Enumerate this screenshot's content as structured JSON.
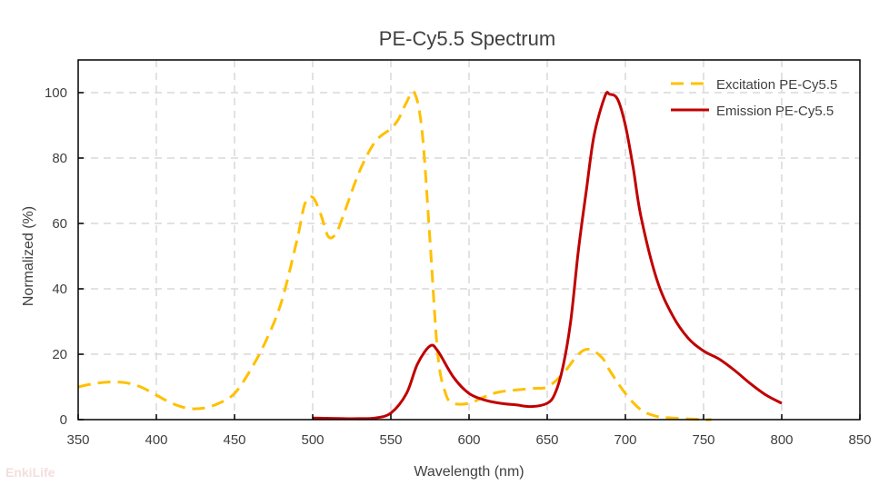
{
  "chart_data": {
    "type": "line",
    "title": "PE-Cy5.5  Spectrum",
    "xlabel": "Wavelength (nm)",
    "ylabel": "Normalized (%)",
    "xlim": [
      350,
      850
    ],
    "ylim": [
      0,
      110
    ],
    "xticks": [
      350,
      400,
      450,
      500,
      550,
      600,
      650,
      700,
      750,
      800,
      850
    ],
    "yticks": [
      0,
      20,
      40,
      60,
      80,
      100
    ],
    "grid": true,
    "legend_position": "top-right",
    "series": [
      {
        "name": "Excitation PE-Cy5.5",
        "color": "#FFC000",
        "style": "dashed",
        "x": [
          350,
          360,
          370,
          380,
          390,
          400,
          410,
          420,
          430,
          440,
          450,
          460,
          470,
          480,
          490,
          495,
          500,
          505,
          510,
          515,
          520,
          530,
          540,
          550,
          555,
          560,
          565,
          570,
          575,
          580,
          585,
          590,
          600,
          610,
          620,
          640,
          650,
          660,
          670,
          677,
          685,
          690,
          700,
          710,
          720,
          730,
          750,
          755
        ],
        "y": [
          10,
          11,
          11.5,
          11.3,
          10,
          7.5,
          5,
          3.5,
          3.5,
          5,
          8,
          15,
          24,
          36,
          55,
          66,
          68,
          63,
          56,
          57,
          63,
          76,
          85,
          89,
          92,
          97,
          100,
          88,
          55,
          20,
          8,
          5,
          5,
          7,
          8.5,
          9.5,
          10,
          14,
          20,
          21.5,
          19,
          15,
          8,
          3,
          1,
          0.5,
          0,
          0
        ]
      },
      {
        "name": "Emission PE-Cy5.5",
        "color": "#C00000",
        "style": "solid",
        "x": [
          500,
          520,
          530,
          540,
          550,
          560,
          567,
          575,
          580,
          590,
          600,
          610,
          620,
          630,
          640,
          650,
          655,
          660,
          665,
          670,
          675,
          680,
          687,
          690,
          695,
          700,
          705,
          710,
          720,
          730,
          740,
          750,
          760,
          770,
          780,
          790,
          800
        ],
        "y": [
          0.5,
          0.3,
          0.3,
          0.5,
          2,
          8,
          17,
          22.5,
          21,
          13,
          8,
          6,
          5,
          4.5,
          4,
          5,
          8,
          16,
          30,
          52,
          70,
          87,
          99,
          99.5,
          98,
          90,
          77,
          62,
          43,
          32,
          25,
          21,
          18.5,
          15,
          11,
          7.5,
          5
        ]
      }
    ]
  },
  "watermark": "EnkiLife"
}
